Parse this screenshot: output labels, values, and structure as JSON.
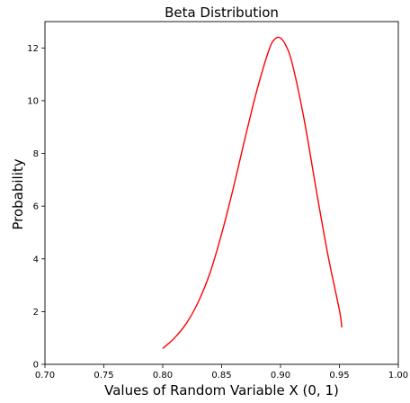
{
  "chart_data": {
    "type": "line",
    "title": "Beta Distribution",
    "xlabel": "Values of Random Variable X (0, 1)",
    "ylabel": "Probability",
    "xlim": [
      0.7,
      1.0
    ],
    "ylim": [
      0,
      13
    ],
    "xticks": [
      "0.70",
      "0.75",
      "0.80",
      "0.85",
      "0.90",
      "0.95",
      "1.00"
    ],
    "yticks": [
      "0",
      "2",
      "4",
      "6",
      "8",
      "10",
      "12"
    ],
    "grid": false,
    "legend": "none",
    "series": [
      {
        "color": "#ff0000",
        "x": [
          0.8,
          0.81,
          0.82,
          0.83,
          0.84,
          0.85,
          0.86,
          0.87,
          0.88,
          0.89,
          0.895,
          0.9,
          0.905,
          0.91,
          0.92,
          0.93,
          0.94,
          0.95,
          0.952
        ],
        "y": [
          0.6,
          1.0,
          1.55,
          2.35,
          3.45,
          4.95,
          6.7,
          8.6,
          10.4,
          11.9,
          12.33,
          12.38,
          12.05,
          11.4,
          9.3,
          6.7,
          4.2,
          2.05,
          1.4
        ]
      }
    ]
  }
}
